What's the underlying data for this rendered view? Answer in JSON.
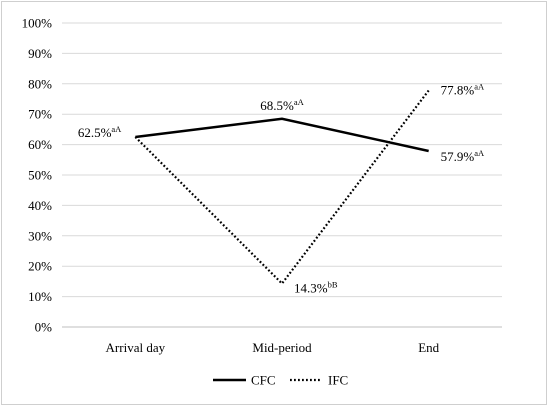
{
  "chart_data": {
    "type": "line",
    "categories": [
      "Arrival day",
      "Mid-period",
      "End"
    ],
    "ylim": [
      0,
      100
    ],
    "yticks": [
      "0%",
      "10%",
      "20%",
      "30%",
      "40%",
      "50%",
      "60%",
      "70%",
      "80%",
      "90%",
      "100%"
    ],
    "grid": true,
    "legend_position": "bottom",
    "series": [
      {
        "name": "CFC",
        "style": "solid",
        "color": "#000000",
        "values": [
          62.5,
          68.5,
          57.9
        ],
        "labels": [
          "62.5%",
          "68.5%",
          "57.9%"
        ],
        "sups": [
          "aA",
          "aA",
          "aA"
        ]
      },
      {
        "name": "IFC",
        "style": "dotted",
        "color": "#000000",
        "values": [
          62.5,
          14.3,
          77.8
        ],
        "labels": [
          "",
          "14.3%",
          "77.8%"
        ],
        "sups": [
          "",
          "bB",
          "aA"
        ]
      }
    ]
  }
}
